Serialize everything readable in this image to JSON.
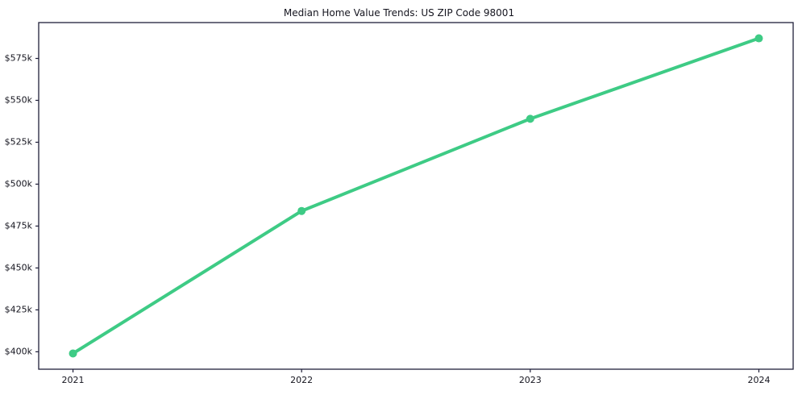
{
  "figure": {
    "title": "Median Home Value Trends: US ZIP Code 98001"
  },
  "chart_data": {
    "type": "line",
    "title": "Median Home Value Trends: US ZIP Code 98001",
    "categories": [
      "2021",
      "2022",
      "2023",
      "2024"
    ],
    "x": [
      2021,
      2022,
      2023,
      2024
    ],
    "series": [
      {
        "name": "Median Home Value",
        "values": [
          399000,
          484000,
          539000,
          587000
        ]
      }
    ],
    "xlabel": "",
    "ylabel": "",
    "xlim": [
      2020.85,
      2024.15
    ],
    "ylim": [
      389600,
      596400
    ],
    "yticks": [
      400000,
      425000,
      450000,
      475000,
      500000,
      525000,
      550000,
      575000
    ],
    "ytick_labels": [
      "$400k",
      "$425k",
      "$450k",
      "$475k",
      "$500k",
      "$525k",
      "$550k",
      "$575k"
    ],
    "xtick_labels": [
      "2021",
      "2022",
      "2023",
      "2024"
    ],
    "grid": false,
    "legend_position": "none",
    "line_color": "#3ecb85",
    "marker": "circle",
    "marker_color": "#3ecb85",
    "axis_color": "#20203a",
    "tick_label_color": "#15151f"
  }
}
